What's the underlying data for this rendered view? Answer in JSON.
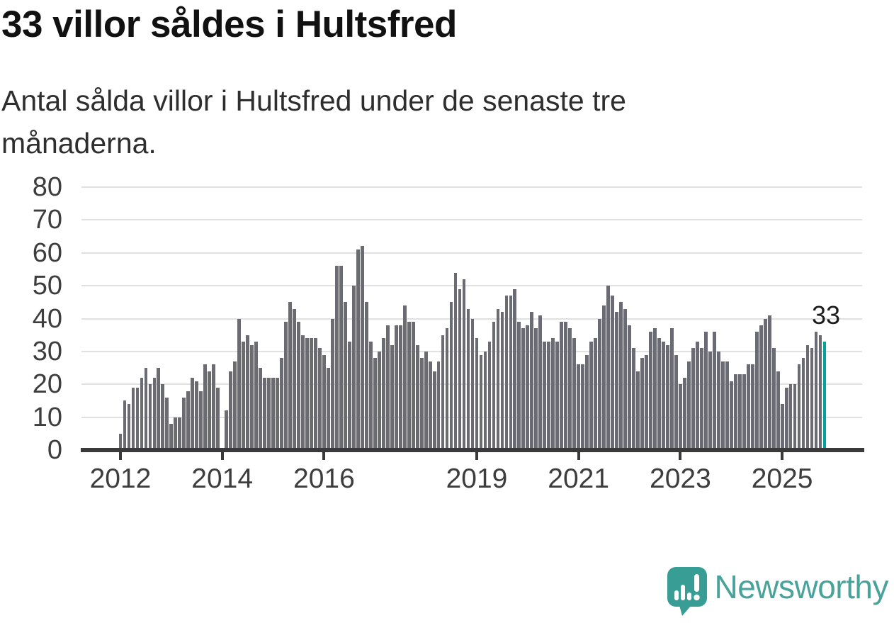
{
  "header": {
    "title": "33 villor såldes i Hultsfred",
    "subtitle": "Antal sålda villor i Hultsfred under de senaste tre månaderna."
  },
  "chart_data": {
    "type": "bar",
    "title": "33 villor såldes i Hultsfred",
    "xlabel": "",
    "ylabel": "",
    "x_start_month": "2012-01",
    "x_end_month": "2025-11",
    "values": [
      5,
      15,
      14,
      19,
      19,
      22,
      25,
      20,
      22,
      25,
      20,
      16,
      8,
      10,
      10,
      16,
      18,
      22,
      21,
      18,
      26,
      24,
      26,
      19,
      0,
      12,
      24,
      27,
      40,
      33,
      35,
      32,
      33,
      25,
      22,
      22,
      22,
      22,
      28,
      39,
      45,
      43,
      39,
      35,
      34,
      34,
      34,
      31,
      29,
      25,
      40,
      56,
      56,
      45,
      33,
      50,
      61,
      62,
      45,
      33,
      28,
      30,
      34,
      38,
      32,
      38,
      38,
      44,
      39,
      39,
      32,
      28,
      30,
      27,
      24,
      27,
      35,
      37,
      45,
      54,
      49,
      52,
      43,
      40,
      34,
      29,
      30,
      33,
      39,
      43,
      42,
      47,
      47,
      49,
      39,
      37,
      38,
      42,
      37,
      41,
      33,
      33,
      34,
      33,
      39,
      39,
      37,
      34,
      26,
      26,
      29,
      33,
      34,
      40,
      44,
      50,
      47,
      42,
      45,
      43,
      38,
      31,
      24,
      28,
      29,
      36,
      37,
      34,
      33,
      32,
      37,
      29,
      20,
      22,
      27,
      31,
      33,
      31,
      36,
      30,
      36,
      30,
      27,
      27,
      21,
      23,
      23,
      23,
      26,
      26,
      36,
      38,
      40,
      41,
      31,
      24,
      14,
      19,
      20,
      20,
      26,
      28,
      32,
      31,
      36,
      35,
      33
    ],
    "highlight_last_bar": true,
    "last_value_label": "33",
    "ylim": [
      0,
      80
    ],
    "y_ticks": [
      0,
      10,
      20,
      30,
      40,
      50,
      60,
      70,
      80
    ],
    "x_ticks": [
      {
        "label": "2012",
        "month_index": 0
      },
      {
        "label": "2014",
        "month_index": 24
      },
      {
        "label": "2016",
        "month_index": 48
      },
      {
        "label": "2019",
        "month_index": 84
      },
      {
        "label": "2021",
        "month_index": 108
      },
      {
        "label": "2023",
        "month_index": 132
      },
      {
        "label": "2025",
        "month_index": 156
      }
    ],
    "grid": true,
    "legend": "none",
    "colors": {
      "bar": "#6b6b73",
      "highlight": "#00a39b",
      "gridline": "#e1e1e1",
      "axis": "#3a3a3a",
      "tick_label": "#3d3d3d"
    }
  },
  "footer": {
    "brand": "Newsworthy",
    "brand_color": "#4aa39b"
  }
}
